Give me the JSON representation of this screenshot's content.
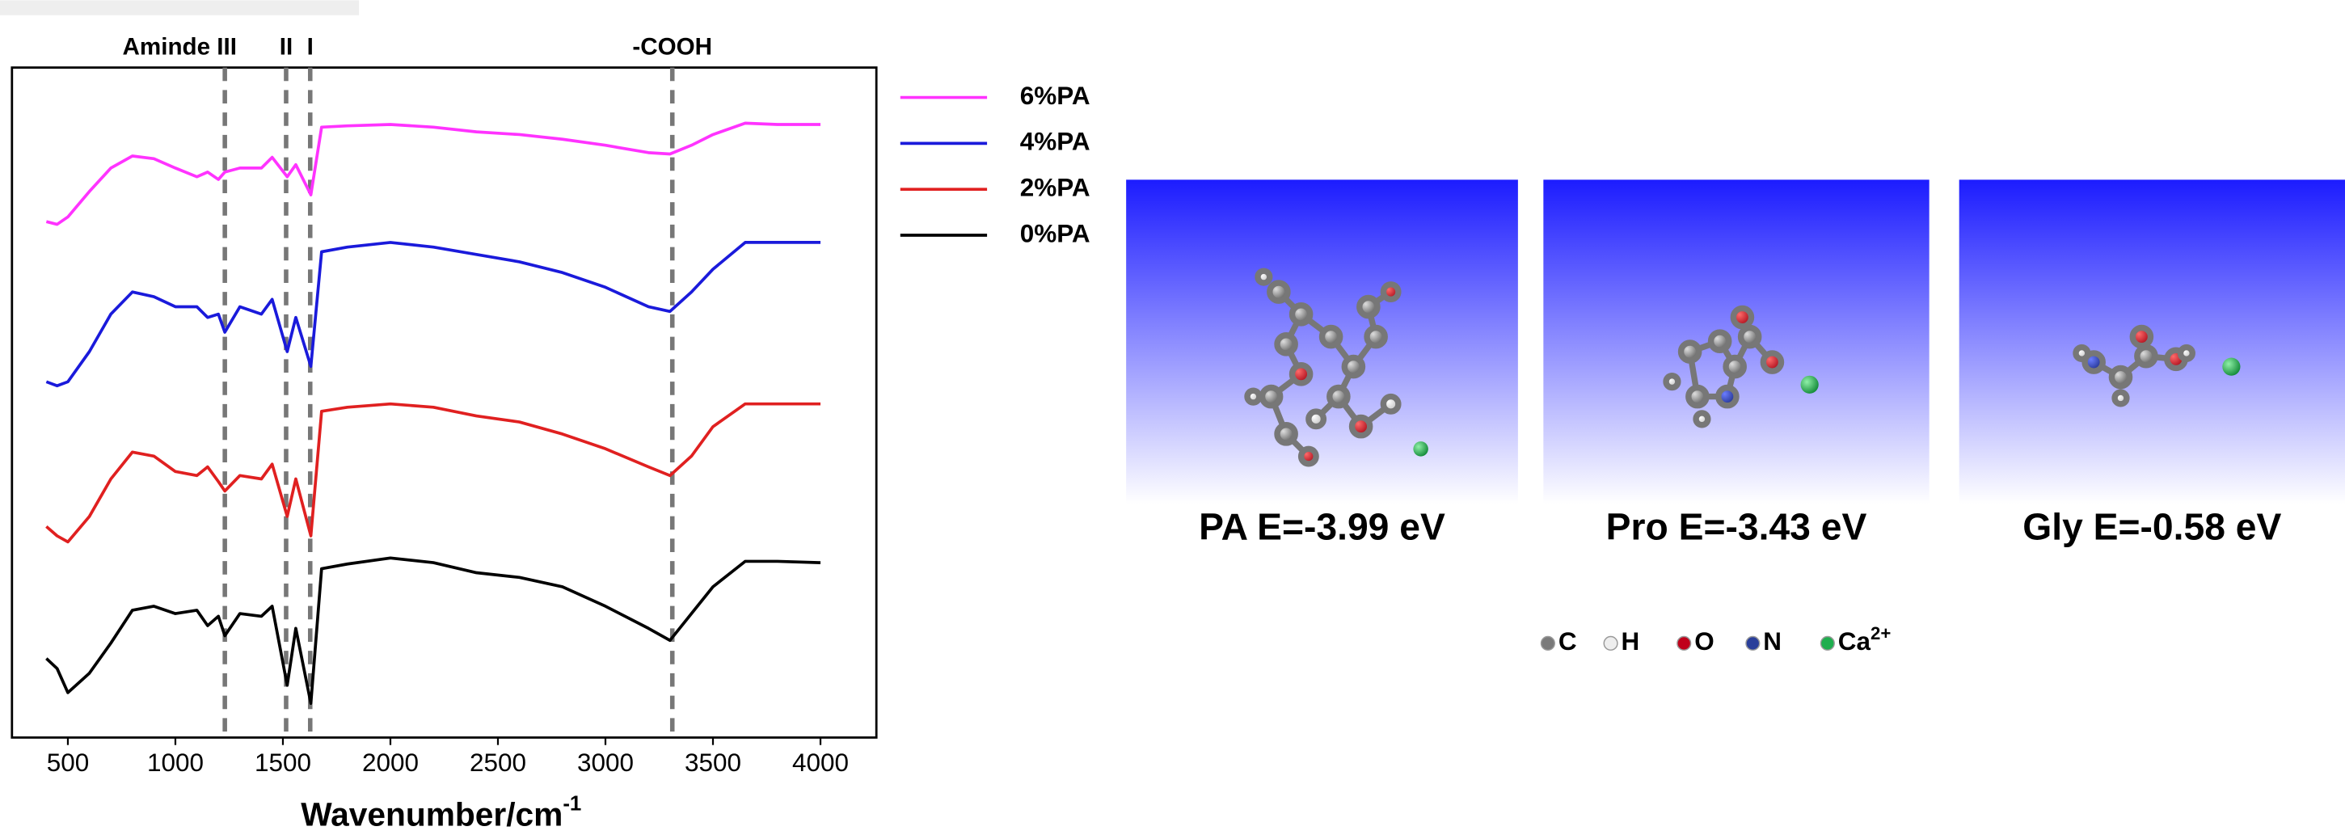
{
  "chart_data": {
    "type": "line",
    "xlabel": "Wavenumber/cm",
    "xlabel_superscript": "-1",
    "x": [
      400,
      450,
      500,
      600,
      700,
      800,
      900,
      1000,
      1100,
      1150,
      1200,
      1230,
      1300,
      1400,
      1450,
      1520,
      1560,
      1630,
      1680,
      1800,
      2000,
      2200,
      2400,
      2600,
      2800,
      3000,
      3200,
      3300,
      3400,
      3500,
      3650,
      3800,
      4000
    ],
    "series": [
      {
        "name": "6%PA",
        "color": "#ff33ff",
        "values": [
          77.0,
          76.6,
          77.7,
          81.5,
          85.0,
          86.8,
          86.4,
          85.0,
          83.7,
          84.4,
          83.3,
          84.4,
          85.0,
          85.0,
          86.6,
          83.7,
          85.5,
          81.0,
          91.1,
          91.3,
          91.5,
          91.1,
          90.4,
          90.0,
          89.3,
          88.4,
          87.3,
          87.1,
          88.4,
          90.0,
          91.7,
          91.5,
          91.5
        ]
      },
      {
        "name": "4%PA",
        "color": "#1a1adb",
        "values": [
          53.1,
          52.5,
          53.1,
          57.6,
          63.2,
          66.5,
          65.8,
          64.3,
          64.3,
          62.7,
          63.2,
          60.5,
          64.3,
          63.2,
          65.4,
          57.6,
          62.7,
          55.4,
          72.5,
          73.2,
          73.9,
          73.2,
          72.1,
          71.0,
          69.4,
          67.2,
          64.3,
          63.6,
          66.5,
          69.9,
          73.9,
          73.9,
          73.9
        ]
      },
      {
        "name": "2%PA",
        "color": "#e02020",
        "values": [
          31.5,
          30.1,
          29.2,
          33.0,
          38.6,
          42.6,
          42.0,
          39.7,
          39.1,
          40.4,
          38.2,
          36.8,
          39.1,
          38.6,
          40.8,
          33.0,
          38.6,
          30.1,
          48.7,
          49.3,
          49.8,
          49.3,
          48.0,
          47.1,
          45.3,
          43.1,
          40.4,
          39.1,
          42.0,
          46.4,
          49.8,
          49.8,
          49.8
        ]
      },
      {
        "name": "0%PA",
        "color": "#000000",
        "values": [
          11.8,
          10.3,
          6.7,
          9.6,
          14.1,
          19.0,
          19.6,
          18.5,
          19.0,
          16.7,
          18.1,
          15.2,
          18.5,
          18.1,
          19.6,
          7.8,
          16.3,
          5.1,
          25.2,
          25.9,
          26.8,
          26.1,
          24.6,
          23.9,
          22.5,
          19.6,
          16.3,
          14.5,
          18.5,
          22.5,
          26.3,
          26.3,
          26.1
        ]
      }
    ],
    "xlim": [
      240,
      4260
    ],
    "xticks": [
      500,
      1000,
      1500,
      2000,
      2500,
      3000,
      3500,
      4000
    ],
    "ylim": [
      0,
      100
    ],
    "annotations": [
      {
        "x": 1230,
        "label": "Aminde III"
      },
      {
        "x": 1515,
        "label": "II"
      },
      {
        "x": 1627,
        "label": "I"
      },
      {
        "x": 3311,
        "label": "-COOH"
      }
    ]
  },
  "energy_panels": [
    {
      "label": "PA E=-3.99 eV"
    },
    {
      "label": "Pro E=-3.43 eV"
    },
    {
      "label": "Gly E=-0.58 eV"
    }
  ],
  "atom_legend": [
    {
      "symbol": "C",
      "color": "#7a7a7a"
    },
    {
      "symbol": "H",
      "color": "#eeeeee"
    },
    {
      "symbol": "O",
      "color": "#c0001a"
    },
    {
      "symbol": "N",
      "color": "#2a3f9a"
    },
    {
      "symbol": "Ca",
      "charge": "2+",
      "color": "#1fae4e"
    }
  ]
}
